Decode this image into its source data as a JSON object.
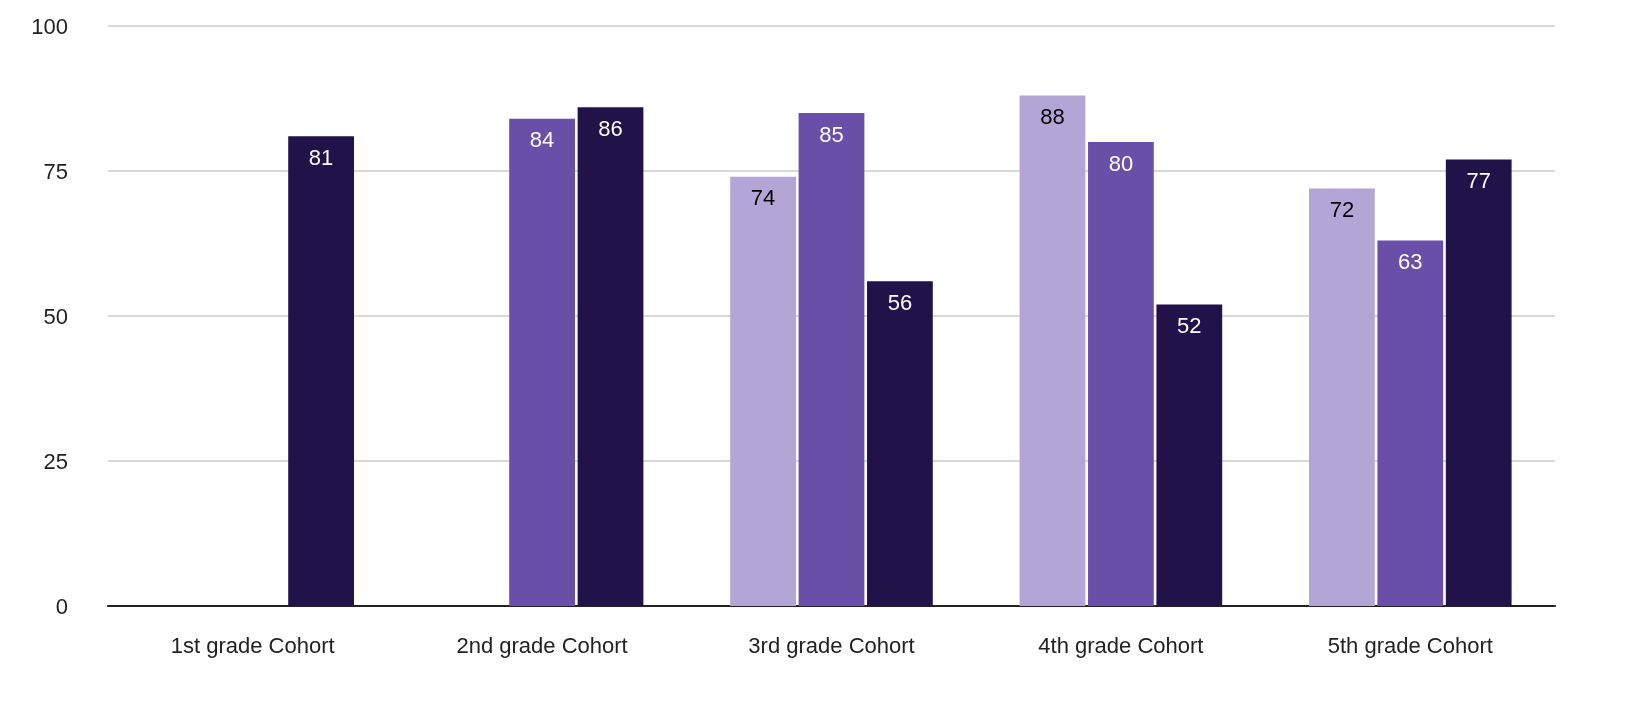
{
  "chart_data": {
    "type": "bar",
    "categories": [
      "1st grade Cohort",
      "2nd grade Cohort",
      "3rd grade Cohort",
      "4th grade Cohort",
      "5th grade Cohort"
    ],
    "series": [
      {
        "color": "#b3a6d6",
        "values": [
          null,
          null,
          74,
          88,
          72
        ]
      },
      {
        "color": "#6a4fa8",
        "values": [
          null,
          84,
          85,
          80,
          63
        ]
      },
      {
        "color": "#21134a",
        "values": [
          81,
          86,
          56,
          52,
          77
        ]
      }
    ],
    "ylim": [
      0,
      100
    ],
    "yticks": [
      0,
      25,
      50,
      75,
      100
    ],
    "grid": "y",
    "data_labels": true
  }
}
